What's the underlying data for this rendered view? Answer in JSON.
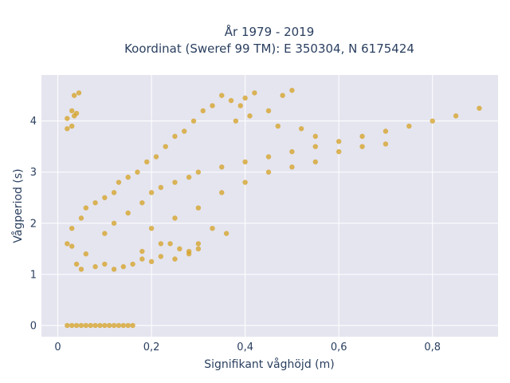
{
  "chart_data": {
    "type": "scatter",
    "title": "År 1979 - 2019",
    "subtitle": "Koordinat (Sweref 99 TM): E 350304, N 6175424",
    "xlabel": "Signifikant våghöjd (m)",
    "ylabel": "Vågperiod (s)",
    "xlim": [
      -0.035,
      0.94
    ],
    "ylim": [
      -0.22,
      4.9
    ],
    "xticks": [
      0,
      0.2,
      0.4,
      0.6,
      0.8
    ],
    "xtick_labels": [
      "0",
      "0,2",
      "0,4",
      "0,6",
      "0,8"
    ],
    "yticks": [
      0,
      1,
      2,
      3,
      4
    ],
    "ytick_labels": [
      "0",
      "1",
      "2",
      "3",
      "4"
    ],
    "grid": true,
    "marker_color": "#d4a021",
    "plot_background": "#e5e5f0",
    "series": [
      {
        "points": [
          [
            0.02,
            0
          ],
          [
            0.03,
            0
          ],
          [
            0.04,
            0
          ],
          [
            0.05,
            0
          ],
          [
            0.06,
            0
          ],
          [
            0.07,
            0
          ],
          [
            0.08,
            0
          ],
          [
            0.09,
            0
          ],
          [
            0.1,
            0
          ],
          [
            0.11,
            0
          ],
          [
            0.12,
            0
          ],
          [
            0.13,
            0
          ],
          [
            0.14,
            0
          ],
          [
            0.15,
            0
          ],
          [
            0.16,
            0
          ],
          [
            0.02,
            4.05
          ],
          [
            0.03,
            4.2
          ],
          [
            0.035,
            4.1
          ],
          [
            0.02,
            3.85
          ],
          [
            0.03,
            3.9
          ],
          [
            0.04,
            4.15
          ],
          [
            0.035,
            4.5
          ],
          [
            0.045,
            4.55
          ],
          [
            0.02,
            1.6
          ],
          [
            0.03,
            1.55
          ],
          [
            0.04,
            1.2
          ],
          [
            0.05,
            1.1
          ],
          [
            0.06,
            1.4
          ],
          [
            0.08,
            1.15
          ],
          [
            0.1,
            1.2
          ],
          [
            0.12,
            1.1
          ],
          [
            0.14,
            1.15
          ],
          [
            0.16,
            1.2
          ],
          [
            0.18,
            1.3
          ],
          [
            0.2,
            1.25
          ],
          [
            0.22,
            1.35
          ],
          [
            0.25,
            1.3
          ],
          [
            0.28,
            1.4
          ],
          [
            0.3,
            1.5
          ],
          [
            0.03,
            1.9
          ],
          [
            0.05,
            2.1
          ],
          [
            0.06,
            2.3
          ],
          [
            0.08,
            2.4
          ],
          [
            0.1,
            2.5
          ],
          [
            0.12,
            2.6
          ],
          [
            0.13,
            2.8
          ],
          [
            0.15,
            2.9
          ],
          [
            0.17,
            3.0
          ],
          [
            0.19,
            3.2
          ],
          [
            0.21,
            3.3
          ],
          [
            0.23,
            3.5
          ],
          [
            0.25,
            3.7
          ],
          [
            0.27,
            3.8
          ],
          [
            0.29,
            4.0
          ],
          [
            0.31,
            4.2
          ],
          [
            0.33,
            4.3
          ],
          [
            0.35,
            4.5
          ],
          [
            0.37,
            4.4
          ],
          [
            0.39,
            4.3
          ],
          [
            0.1,
            1.8
          ],
          [
            0.12,
            2.0
          ],
          [
            0.15,
            2.2
          ],
          [
            0.18,
            2.4
          ],
          [
            0.2,
            2.6
          ],
          [
            0.22,
            2.7
          ],
          [
            0.25,
            2.8
          ],
          [
            0.28,
            2.9
          ],
          [
            0.3,
            3.0
          ],
          [
            0.35,
            3.1
          ],
          [
            0.4,
            3.2
          ],
          [
            0.45,
            3.3
          ],
          [
            0.5,
            3.4
          ],
          [
            0.55,
            3.5
          ],
          [
            0.6,
            3.6
          ],
          [
            0.65,
            3.7
          ],
          [
            0.7,
            3.8
          ],
          [
            0.75,
            3.9
          ],
          [
            0.8,
            4.0
          ],
          [
            0.85,
            4.1
          ],
          [
            0.9,
            4.25
          ],
          [
            0.2,
            1.9
          ],
          [
            0.25,
            2.1
          ],
          [
            0.3,
            2.3
          ],
          [
            0.35,
            2.6
          ],
          [
            0.4,
            2.8
          ],
          [
            0.45,
            3.0
          ],
          [
            0.5,
            3.1
          ],
          [
            0.55,
            3.2
          ],
          [
            0.6,
            3.4
          ],
          [
            0.65,
            3.5
          ],
          [
            0.7,
            3.55
          ],
          [
            0.4,
            4.45
          ],
          [
            0.42,
            4.55
          ],
          [
            0.45,
            4.2
          ],
          [
            0.48,
            4.5
          ],
          [
            0.5,
            4.6
          ],
          [
            0.38,
            4.0
          ],
          [
            0.41,
            4.1
          ],
          [
            0.47,
            3.9
          ],
          [
            0.52,
            3.85
          ],
          [
            0.55,
            3.7
          ],
          [
            0.24,
            1.6
          ],
          [
            0.26,
            1.5
          ],
          [
            0.28,
            1.45
          ],
          [
            0.3,
            1.6
          ],
          [
            0.33,
            1.9
          ],
          [
            0.36,
            1.8
          ],
          [
            0.18,
            1.45
          ],
          [
            0.22,
            1.6
          ]
        ]
      }
    ]
  }
}
